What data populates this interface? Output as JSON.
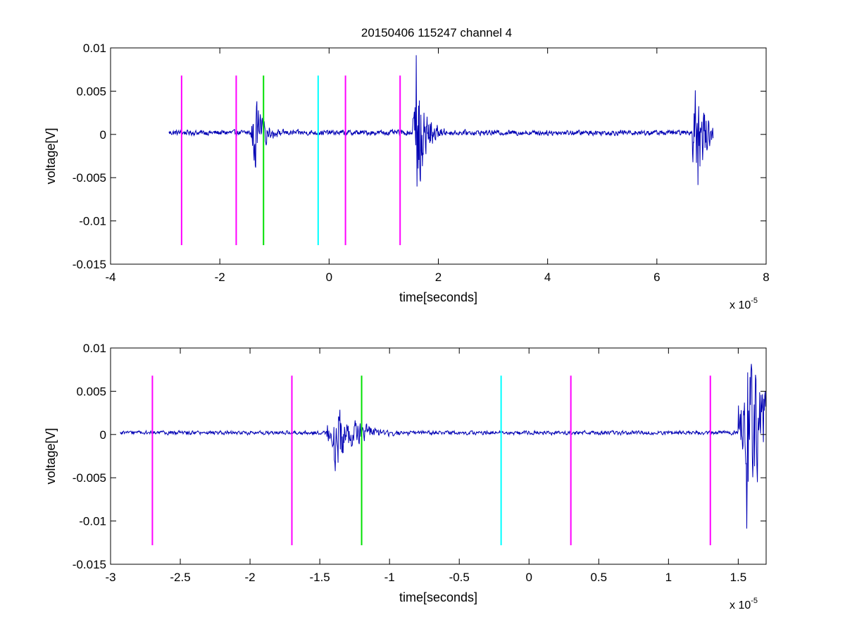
{
  "title": "20150406 115247 channel 4",
  "colors": {
    "signal": "#0000b4",
    "magenta": "#ff00ff",
    "green": "#00e000",
    "cyan": "#00ffff"
  },
  "chart_data": [
    {
      "type": "line",
      "xlabel": "time[seconds]",
      "ylabel": "voltage[V]",
      "x_multiplier": "x 10",
      "x_multiplier_exp": "-5",
      "xlim": [
        -4,
        8
      ],
      "ylim": [
        -0.015,
        0.01
      ],
      "xticks": [
        -4,
        -2,
        0,
        2,
        4,
        6,
        8
      ],
      "xtick_labels": [
        "-4",
        "-2",
        "0",
        "2",
        "4",
        "6",
        "8"
      ],
      "yticks": [
        -0.015,
        -0.01,
        -0.005,
        0,
        0.005,
        0.01
      ],
      "ytick_labels": [
        "-0.015",
        "-0.01",
        "-0.005",
        "0",
        "0.005",
        "0.01"
      ],
      "markers": [
        {
          "x": -2.7,
          "color": "magenta"
        },
        {
          "x": -1.7,
          "color": "magenta"
        },
        {
          "x": -1.2,
          "color": "green"
        },
        {
          "x": -0.2,
          "color": "cyan"
        },
        {
          "x": 0.3,
          "color": "magenta"
        },
        {
          "x": 1.3,
          "color": "magenta"
        }
      ],
      "marker_range": [
        -0.0128,
        0.0068
      ],
      "signal": {
        "x_range": [
          -2.93,
          7.03
        ],
        "baseline": 0.0002,
        "noise": 0.0004,
        "bursts": [
          {
            "x": -1.38,
            "amp": 0.0045
          },
          {
            "x": 1.58,
            "amp": 0.011
          },
          {
            "x": 6.7,
            "amp": 0.009
          }
        ]
      }
    },
    {
      "type": "line",
      "xlabel": "time[seconds]",
      "ylabel": "voltage[V]",
      "x_multiplier": "x 10",
      "x_multiplier_exp": "-5",
      "xlim": [
        -3,
        1.7
      ],
      "ylim": [
        -0.015,
        0.01
      ],
      "xticks": [
        -3,
        -2.5,
        -2,
        -1.5,
        -1,
        -0.5,
        0,
        0.5,
        1,
        1.5
      ],
      "xtick_labels": [
        "-3",
        "-2.5",
        "-2",
        "-1.5",
        "-1",
        "-0.5",
        "0",
        "0.5",
        "1",
        "1.5"
      ],
      "yticks": [
        -0.015,
        -0.01,
        -0.005,
        0,
        0.005,
        0.01
      ],
      "ytick_labels": [
        "-0.015",
        "-0.01",
        "-0.005",
        "0",
        "0.005",
        "0.01"
      ],
      "markers": [
        {
          "x": -2.7,
          "color": "magenta"
        },
        {
          "x": -1.7,
          "color": "magenta"
        },
        {
          "x": -1.2,
          "color": "green"
        },
        {
          "x": -0.2,
          "color": "cyan"
        },
        {
          "x": 0.3,
          "color": "magenta"
        },
        {
          "x": 1.3,
          "color": "magenta"
        }
      ],
      "marker_range": [
        -0.0128,
        0.0068
      ],
      "signal": {
        "x_range": [
          -2.93,
          1.7
        ],
        "baseline": 0.0002,
        "noise": 0.0003,
        "bursts": [
          {
            "x": -1.4,
            "amp": 0.004
          },
          {
            "x": 1.55,
            "amp": 0.011
          }
        ]
      }
    }
  ]
}
